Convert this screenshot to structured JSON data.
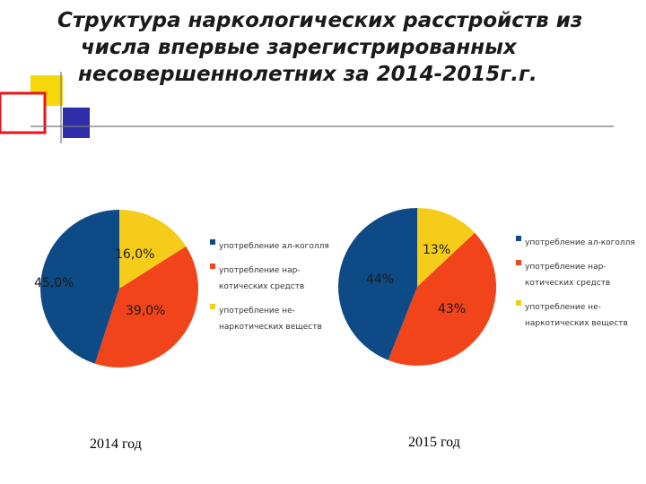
{
  "title_lines": [
    "Структура наркологических расстройств из",
    "числа впервые зарегистрированных",
    "несовершеннолетних за 2014-2015г.г."
  ],
  "colors": {
    "deco_yellow": "#f5d70a",
    "deco_blue": "#2e2ea8",
    "deco_red": "#e8161a",
    "deco_gray": "#777777"
  },
  "legend_items": [
    {
      "label": "употребление ал-коголля",
      "color": "#0d4a86"
    },
    {
      "label": "употребление нар-котических средств",
      "color": "#f2441b"
    },
    {
      "label": "употребление не-наркотических веществ",
      "color": "#f5cc1a"
    }
  ],
  "chart_data": [
    {
      "type": "pie",
      "title": "",
      "xlabel": "2014 год",
      "categories": [
        "употребление ал-коголля",
        "употребление нар-котических средств",
        "употребление не-наркотических веществ"
      ],
      "values": [
        45.0,
        39.0,
        16.0
      ],
      "value_labels": [
        "45,0%",
        "39,0%",
        "16,0%"
      ],
      "colors": [
        "#0d4a86",
        "#f2441b",
        "#f5cc1a"
      ],
      "legend": "right"
    },
    {
      "type": "pie",
      "title": "",
      "xlabel": "2015 год",
      "categories": [
        "употребление ал-коголля",
        "употребление нар-котических средств",
        "употребление не-наркотических веществ"
      ],
      "values": [
        44,
        43,
        13
      ],
      "value_labels": [
        "44%",
        "43%",
        "13%"
      ],
      "colors": [
        "#0d4a86",
        "#f2441b",
        "#f5cc1a"
      ],
      "legend": "right"
    }
  ]
}
